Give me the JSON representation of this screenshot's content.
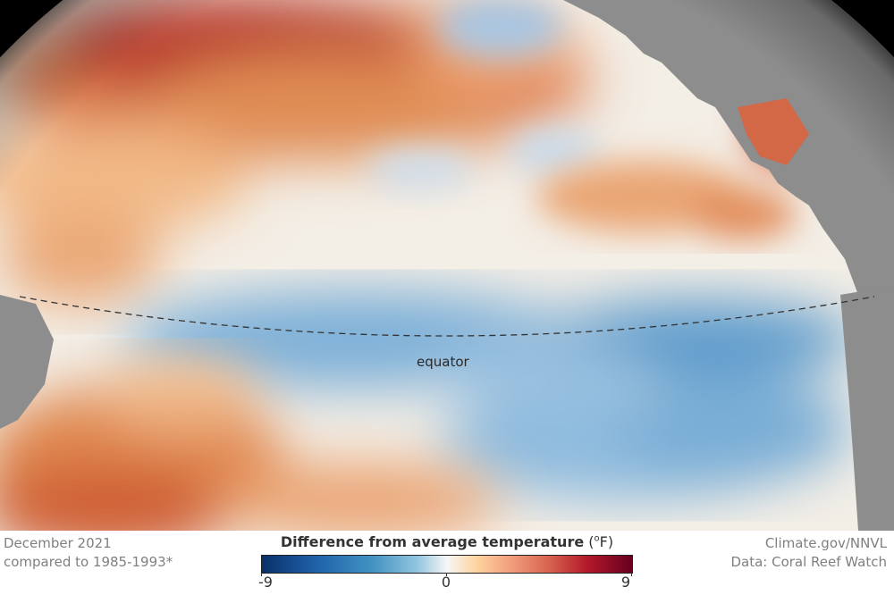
{
  "map": {
    "equator_label": "equator",
    "colors": {
      "warm_max": "#67001f",
      "warm": "#d6604d",
      "neutral": "#f7f7f7",
      "cool": "#4393c3",
      "cool_max": "#08306b",
      "land": "#8c8c8c",
      "space": "#000000"
    }
  },
  "footer": {
    "date_line": "December 2021",
    "baseline_line": "compared to 1985-1993*",
    "credit_line": "Climate.gov/NNVL",
    "data_line": "Data: Coral Reef Watch"
  },
  "legend": {
    "title_text": "Difference from average temperature",
    "unit_open": " (",
    "unit_sup": "o",
    "unit_close": "F)",
    "ticks": [
      "-9",
      "0",
      "9"
    ],
    "min_value": -9,
    "max_value": 9
  }
}
